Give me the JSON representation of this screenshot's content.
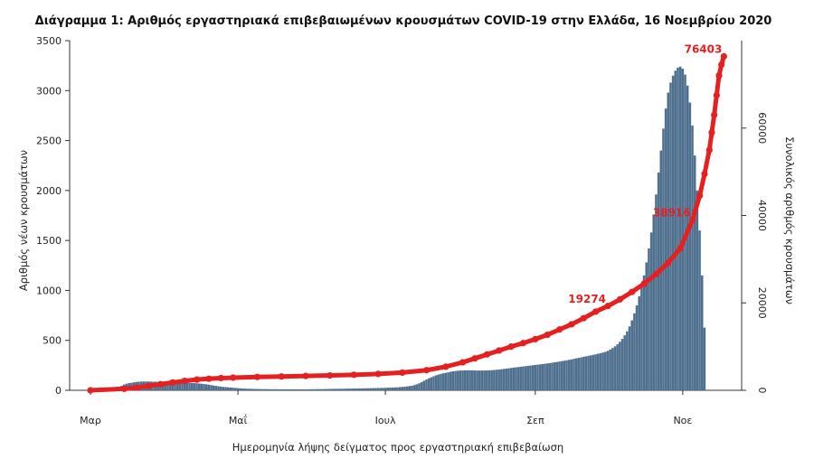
{
  "chart_data": {
    "type": "bar+line",
    "title": "Διάγραμμα 1: Αριθμός εργαστηριακά επιβεβαιωμένων κρουσμάτων COVID-19 στην Ελλάδα, 16 Νοεμβρίου 2020",
    "xlabel": "Ημερομηνία λήψης δείγματος προς εργαστηριακή επιβεβαίωση",
    "ylabel_left": "Αριθμός νέων κρουσμάτων",
    "ylabel_right": "Συνολικός αριθμός κρουσμάτων",
    "x_ticks": [
      "Μαρ",
      "Μαΐ",
      "Ιουλ",
      "Σεπ",
      "Νοε"
    ],
    "x_tick_days": [
      1,
      62,
      123,
      185,
      246
    ],
    "x_range_days": [
      1,
      261
    ],
    "y_left_range": [
      0,
      3500
    ],
    "y_left_ticks": [
      0,
      500,
      1000,
      1500,
      2000,
      2500,
      3000,
      3500
    ],
    "y_right_range": [
      0,
      80000
    ],
    "y_right_ticks": [
      0,
      20000,
      40000,
      60000
    ],
    "series": [
      {
        "name": "Νέα κρούσματα",
        "kind": "bar",
        "color": "#4f6f8f",
        "start_day": 1,
        "values": [
          0,
          0,
          1,
          1,
          2,
          3,
          3,
          6,
          9,
          14,
          20,
          26,
          35,
          45,
          58,
          66,
          72,
          75,
          80,
          84,
          86,
          87,
          88,
          88,
          88,
          87,
          86,
          86,
          84,
          83,
          82,
          81,
          80,
          79,
          78,
          78,
          77,
          77,
          76,
          76,
          75,
          74,
          73,
          72,
          70,
          68,
          66,
          63,
          60,
          56,
          52,
          48,
          44,
          40,
          37,
          34,
          32,
          30,
          28,
          26,
          24,
          22,
          20,
          18,
          17,
          16,
          15,
          14,
          14,
          13,
          13,
          12,
          12,
          12,
          11,
          11,
          11,
          11,
          10,
          10,
          10,
          10,
          10,
          10,
          10,
          10,
          10,
          10,
          10,
          10,
          10,
          11,
          11,
          11,
          12,
          12,
          12,
          13,
          13,
          14,
          14,
          15,
          15,
          15,
          16,
          16,
          17,
          17,
          17,
          18,
          18,
          19,
          19,
          20,
          20,
          21,
          21,
          22,
          22,
          23,
          23,
          24,
          25,
          26,
          27,
          28,
          29,
          30,
          32,
          34,
          36,
          39,
          42,
          46,
          52,
          60,
          70,
          82,
          95,
          108,
          120,
          130,
          140,
          150,
          158,
          165,
          170,
          175,
          180,
          185,
          190,
          193,
          196,
          198,
          199,
          200,
          200,
          200,
          200,
          199,
          198,
          198,
          198,
          198,
          199,
          200,
          201,
          203,
          205,
          208,
          211,
          214,
          217,
          220,
          224,
          227,
          230,
          233,
          236,
          239,
          242,
          245,
          248,
          251,
          254,
          257,
          260,
          263,
          266,
          269,
          272,
          276,
          280,
          284,
          288,
          292,
          296,
          300,
          305,
          310,
          315,
          320,
          325,
          330,
          335,
          340,
          345,
          350,
          355,
          360,
          366,
          372,
          378,
          385,
          395,
          408,
          423,
          440,
          460,
          485,
          515,
          550,
          590,
          640,
          700,
          770,
          850,
          940,
          1040,
          1150,
          1280,
          1420,
          1580,
          1760,
          1960,
          2180,
          2400,
          2620,
          2820,
          2980,
          3080,
          3150,
          3200,
          3230,
          3240,
          3220,
          3160,
          3050,
          2880,
          2650,
          2350,
          2000,
          1600,
          1150,
          627
        ]
      },
      {
        "name": "Συνολικός αριθμός κρουσμάτων",
        "kind": "line",
        "color": "#e62020",
        "points": [
          [
            1,
            0
          ],
          [
            15,
            350
          ],
          [
            20,
            600
          ],
          [
            25,
            1000
          ],
          [
            30,
            1400
          ],
          [
            35,
            1800
          ],
          [
            40,
            2150
          ],
          [
            45,
            2450
          ],
          [
            50,
            2650
          ],
          [
            55,
            2800
          ],
          [
            60,
            2900
          ],
          [
            70,
            3050
          ],
          [
            80,
            3150
          ],
          [
            90,
            3280
          ],
          [
            100,
            3400
          ],
          [
            110,
            3550
          ],
          [
            120,
            3750
          ],
          [
            130,
            4050
          ],
          [
            140,
            4600
          ],
          [
            148,
            5400
          ],
          [
            155,
            6400
          ],
          [
            160,
            7300
          ],
          [
            165,
            8200
          ],
          [
            170,
            9100
          ],
          [
            175,
            10000
          ],
          [
            180,
            10800
          ],
          [
            185,
            11700
          ],
          [
            190,
            12700
          ],
          [
            195,
            13900
          ],
          [
            200,
            15100
          ],
          [
            205,
            16500
          ],
          [
            210,
            18000
          ],
          [
            215,
            19274
          ],
          [
            220,
            20800
          ],
          [
            225,
            22500
          ],
          [
            230,
            24400
          ],
          [
            235,
            26600
          ],
          [
            240,
            29200
          ],
          [
            245,
            32500
          ],
          [
            250,
            38916
          ],
          [
            253,
            44500
          ],
          [
            255,
            49500
          ],
          [
            257,
            55000
          ],
          [
            258,
            59000
          ],
          [
            259,
            63000
          ],
          [
            260,
            67500
          ],
          [
            261,
            72000
          ],
          [
            262,
            74500
          ],
          [
            263,
            76403
          ]
        ]
      }
    ],
    "annotations": [
      {
        "text": "19274",
        "x_day": 215,
        "y_total": 19274
      },
      {
        "text": "38916",
        "x_day": 250,
        "y_total": 38916
      },
      {
        "text": "76403",
        "x_day": 263,
        "y_total": 76403
      }
    ],
    "grid": false,
    "legend": "none"
  }
}
